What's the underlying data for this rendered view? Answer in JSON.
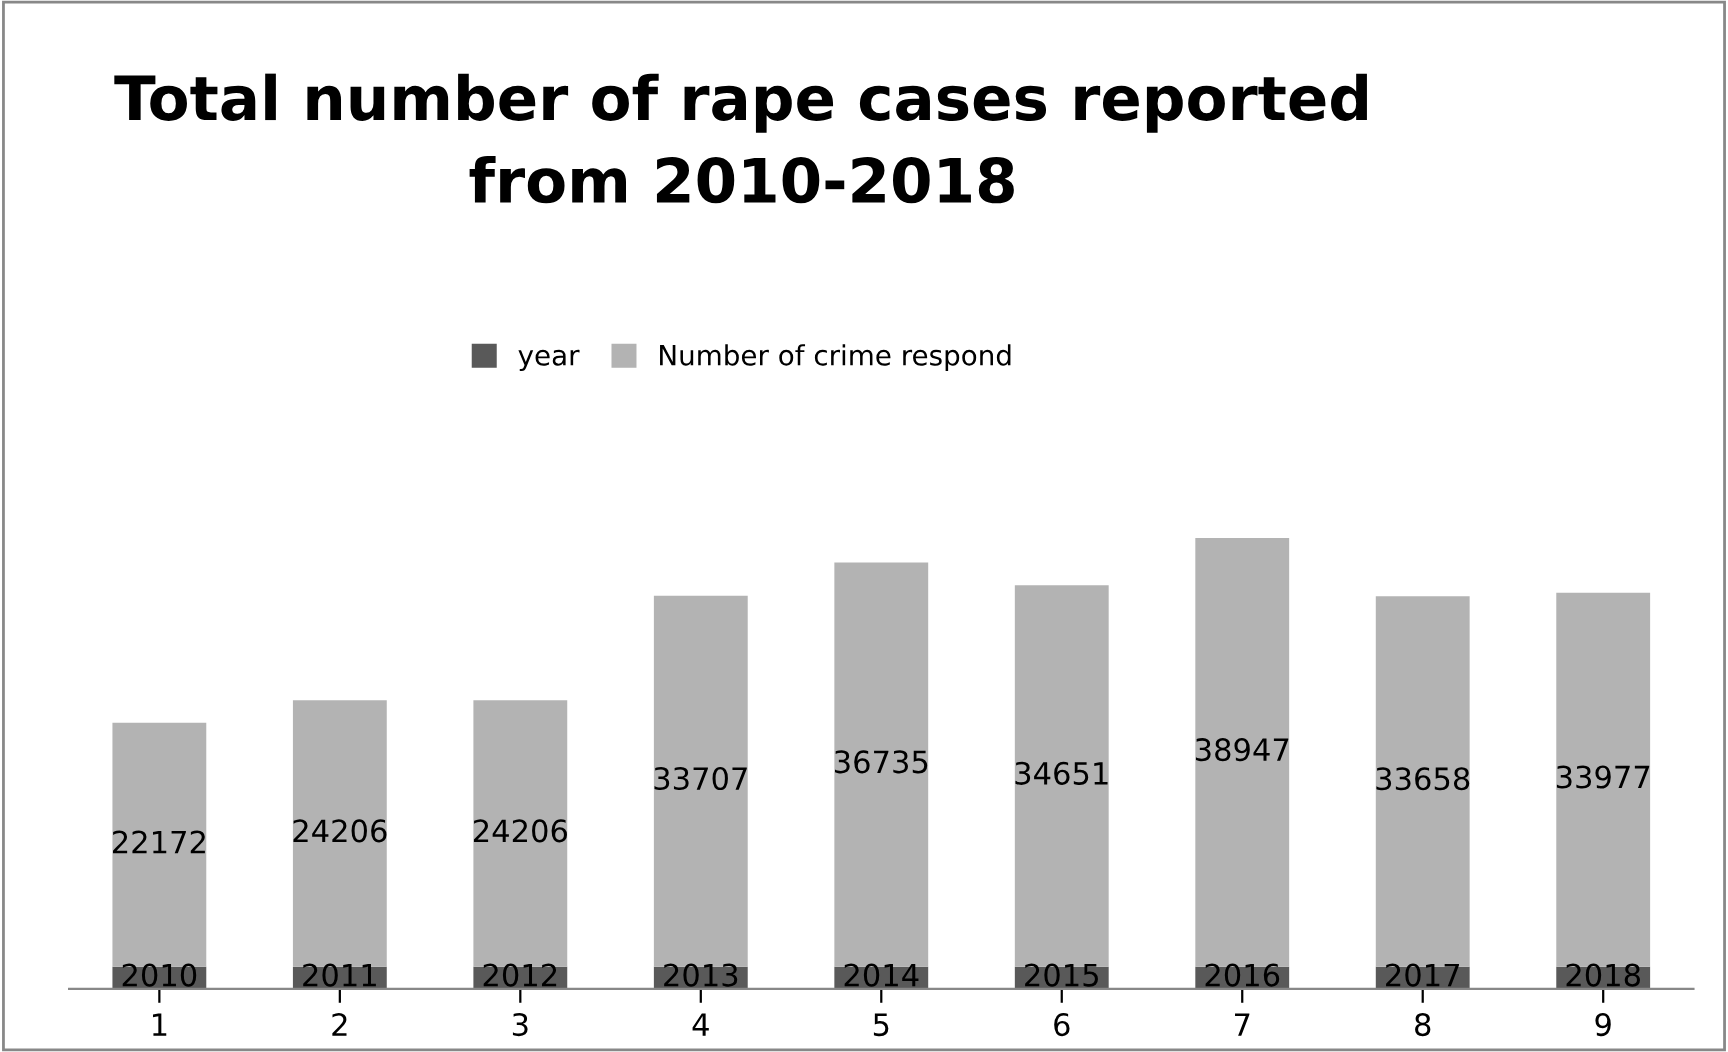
{
  "chart_data": {
    "type": "bar",
    "title": "Total number of rape cases reported\nfrom 2010-2018",
    "categories": [
      "1",
      "2",
      "3",
      "4",
      "5",
      "6",
      "7",
      "8",
      "9"
    ],
    "stacked": true,
    "data_labels": true,
    "legend": "top",
    "grid": false,
    "series": [
      {
        "name": "year",
        "color": "#595959",
        "values": [
          2010,
          2011,
          2012,
          2013,
          2014,
          2015,
          2016,
          2017,
          2018
        ]
      },
      {
        "name": "Number of crime respond",
        "color": "#b3b3b3",
        "values": [
          22172,
          24206,
          24206,
          33707,
          36735,
          34651,
          38947,
          33658,
          33977
        ]
      }
    ]
  }
}
